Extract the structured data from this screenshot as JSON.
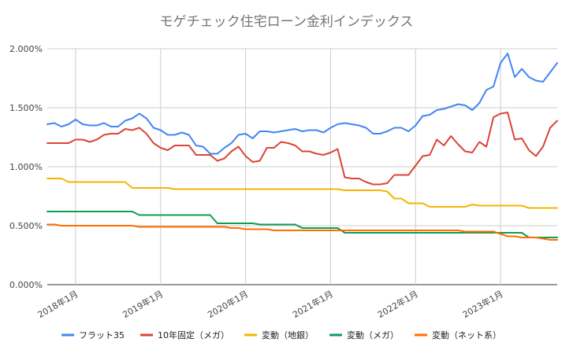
{
  "chart_data": {
    "type": "line",
    "title": "モゲチェック住宅ローン金利インデックス",
    "xlabel": "",
    "ylabel": "",
    "ylim": [
      0,
      2.0
    ],
    "y_ticks": [
      "0.000%",
      "0.500%",
      "1.000%",
      "1.500%",
      "2.000%"
    ],
    "x_ticks": [
      "2018年1月",
      "2019年1月",
      "2020年1月",
      "2021年1月",
      "2022年1月",
      "2023年1月"
    ],
    "x_start": "2017-09",
    "x_end": "2023-09",
    "grid": true,
    "legend_position": "bottom",
    "x": [
      "2017-09",
      "2017-10",
      "2017-11",
      "2017-12",
      "2018-01",
      "2018-02",
      "2018-03",
      "2018-04",
      "2018-05",
      "2018-06",
      "2018-07",
      "2018-08",
      "2018-09",
      "2018-10",
      "2018-11",
      "2018-12",
      "2019-01",
      "2019-02",
      "2019-03",
      "2019-04",
      "2019-05",
      "2019-06",
      "2019-07",
      "2019-08",
      "2019-09",
      "2019-10",
      "2019-11",
      "2019-12",
      "2020-01",
      "2020-02",
      "2020-03",
      "2020-04",
      "2020-05",
      "2020-06",
      "2020-07",
      "2020-08",
      "2020-09",
      "2020-10",
      "2020-11",
      "2020-12",
      "2021-01",
      "2021-02",
      "2021-03",
      "2021-04",
      "2021-05",
      "2021-06",
      "2021-07",
      "2021-08",
      "2021-09",
      "2021-10",
      "2021-11",
      "2021-12",
      "2022-01",
      "2022-02",
      "2022-03",
      "2022-04",
      "2022-05",
      "2022-06",
      "2022-07",
      "2022-08",
      "2022-09",
      "2022-10",
      "2022-11",
      "2022-12",
      "2023-01",
      "2023-02",
      "2023-03",
      "2023-04",
      "2023-05",
      "2023-06",
      "2023-07",
      "2023-08",
      "2023-09"
    ],
    "series": [
      {
        "name": "フラット35",
        "color": "#4285f4",
        "values": [
          1.36,
          1.37,
          1.34,
          1.36,
          1.4,
          1.36,
          1.35,
          1.35,
          1.37,
          1.34,
          1.34,
          1.39,
          1.41,
          1.45,
          1.41,
          1.33,
          1.31,
          1.27,
          1.27,
          1.29,
          1.27,
          1.18,
          1.17,
          1.11,
          1.11,
          1.16,
          1.2,
          1.27,
          1.28,
          1.24,
          1.3,
          1.3,
          1.29,
          1.3,
          1.31,
          1.32,
          1.3,
          1.31,
          1.31,
          1.29,
          1.33,
          1.36,
          1.37,
          1.36,
          1.35,
          1.33,
          1.28,
          1.28,
          1.3,
          1.33,
          1.33,
          1.3,
          1.35,
          1.43,
          1.44,
          1.48,
          1.49,
          1.51,
          1.53,
          1.52,
          1.48,
          1.54,
          1.65,
          1.68,
          1.88,
          1.96,
          1.76,
          1.83,
          1.76,
          1.73,
          1.72,
          1.8,
          1.88
        ]
      },
      {
        "name": "10年固定（メガ）",
        "color": "#db4437",
        "values": [
          1.2,
          1.2,
          1.2,
          1.2,
          1.23,
          1.23,
          1.21,
          1.23,
          1.27,
          1.28,
          1.28,
          1.32,
          1.31,
          1.33,
          1.28,
          1.2,
          1.16,
          1.14,
          1.18,
          1.18,
          1.18,
          1.1,
          1.1,
          1.1,
          1.05,
          1.07,
          1.13,
          1.17,
          1.09,
          1.04,
          1.05,
          1.16,
          1.16,
          1.21,
          1.2,
          1.18,
          1.13,
          1.13,
          1.11,
          1.1,
          1.12,
          1.15,
          0.91,
          0.9,
          0.9,
          0.87,
          0.85,
          0.85,
          0.86,
          0.93,
          0.93,
          0.93,
          1.01,
          1.09,
          1.1,
          1.23,
          1.18,
          1.26,
          1.19,
          1.13,
          1.12,
          1.21,
          1.17,
          1.42,
          1.45,
          1.46,
          1.23,
          1.24,
          1.14,
          1.09,
          1.17,
          1.33,
          1.39
        ]
      },
      {
        "name": "変動（地銀）",
        "color": "#f4b400",
        "values": [
          0.9,
          0.9,
          0.9,
          0.87,
          0.87,
          0.87,
          0.87,
          0.87,
          0.87,
          0.87,
          0.87,
          0.87,
          0.82,
          0.82,
          0.82,
          0.82,
          0.82,
          0.82,
          0.81,
          0.81,
          0.81,
          0.81,
          0.81,
          0.81,
          0.81,
          0.81,
          0.81,
          0.81,
          0.81,
          0.81,
          0.81,
          0.81,
          0.81,
          0.81,
          0.81,
          0.81,
          0.81,
          0.81,
          0.81,
          0.81,
          0.81,
          0.81,
          0.8,
          0.8,
          0.8,
          0.8,
          0.8,
          0.8,
          0.79,
          0.73,
          0.73,
          0.69,
          0.69,
          0.69,
          0.66,
          0.66,
          0.66,
          0.66,
          0.66,
          0.66,
          0.68,
          0.67,
          0.67,
          0.67,
          0.67,
          0.67,
          0.67,
          0.67,
          0.65,
          0.65,
          0.65,
          0.65,
          0.65
        ]
      },
      {
        "name": "変動（メガ）",
        "color": "#0f9d58",
        "values": [
          0.62,
          0.62,
          0.62,
          0.62,
          0.62,
          0.62,
          0.62,
          0.62,
          0.62,
          0.62,
          0.62,
          0.62,
          0.62,
          0.59,
          0.59,
          0.59,
          0.59,
          0.59,
          0.59,
          0.59,
          0.59,
          0.59,
          0.59,
          0.59,
          0.52,
          0.52,
          0.52,
          0.52,
          0.52,
          0.52,
          0.51,
          0.51,
          0.51,
          0.51,
          0.51,
          0.51,
          0.48,
          0.48,
          0.48,
          0.48,
          0.48,
          0.48,
          0.44,
          0.44,
          0.44,
          0.44,
          0.44,
          0.44,
          0.44,
          0.44,
          0.44,
          0.44,
          0.44,
          0.44,
          0.44,
          0.44,
          0.44,
          0.44,
          0.44,
          0.44,
          0.44,
          0.44,
          0.44,
          0.44,
          0.44,
          0.44,
          0.44,
          0.44,
          0.4,
          0.4,
          0.4,
          0.4,
          0.4
        ]
      },
      {
        "name": "変動（ネット系）",
        "color": "#ff6d01",
        "values": [
          0.51,
          0.51,
          0.5,
          0.5,
          0.5,
          0.5,
          0.5,
          0.5,
          0.5,
          0.5,
          0.5,
          0.5,
          0.5,
          0.49,
          0.49,
          0.49,
          0.49,
          0.49,
          0.49,
          0.49,
          0.49,
          0.49,
          0.49,
          0.49,
          0.49,
          0.49,
          0.48,
          0.48,
          0.47,
          0.47,
          0.47,
          0.47,
          0.46,
          0.46,
          0.46,
          0.46,
          0.46,
          0.46,
          0.46,
          0.46,
          0.46,
          0.46,
          0.46,
          0.46,
          0.46,
          0.46,
          0.46,
          0.46,
          0.46,
          0.46,
          0.46,
          0.46,
          0.46,
          0.46,
          0.46,
          0.46,
          0.46,
          0.46,
          0.46,
          0.45,
          0.45,
          0.45,
          0.45,
          0.45,
          0.43,
          0.41,
          0.41,
          0.4,
          0.4,
          0.4,
          0.39,
          0.38,
          0.38
        ]
      }
    ]
  }
}
